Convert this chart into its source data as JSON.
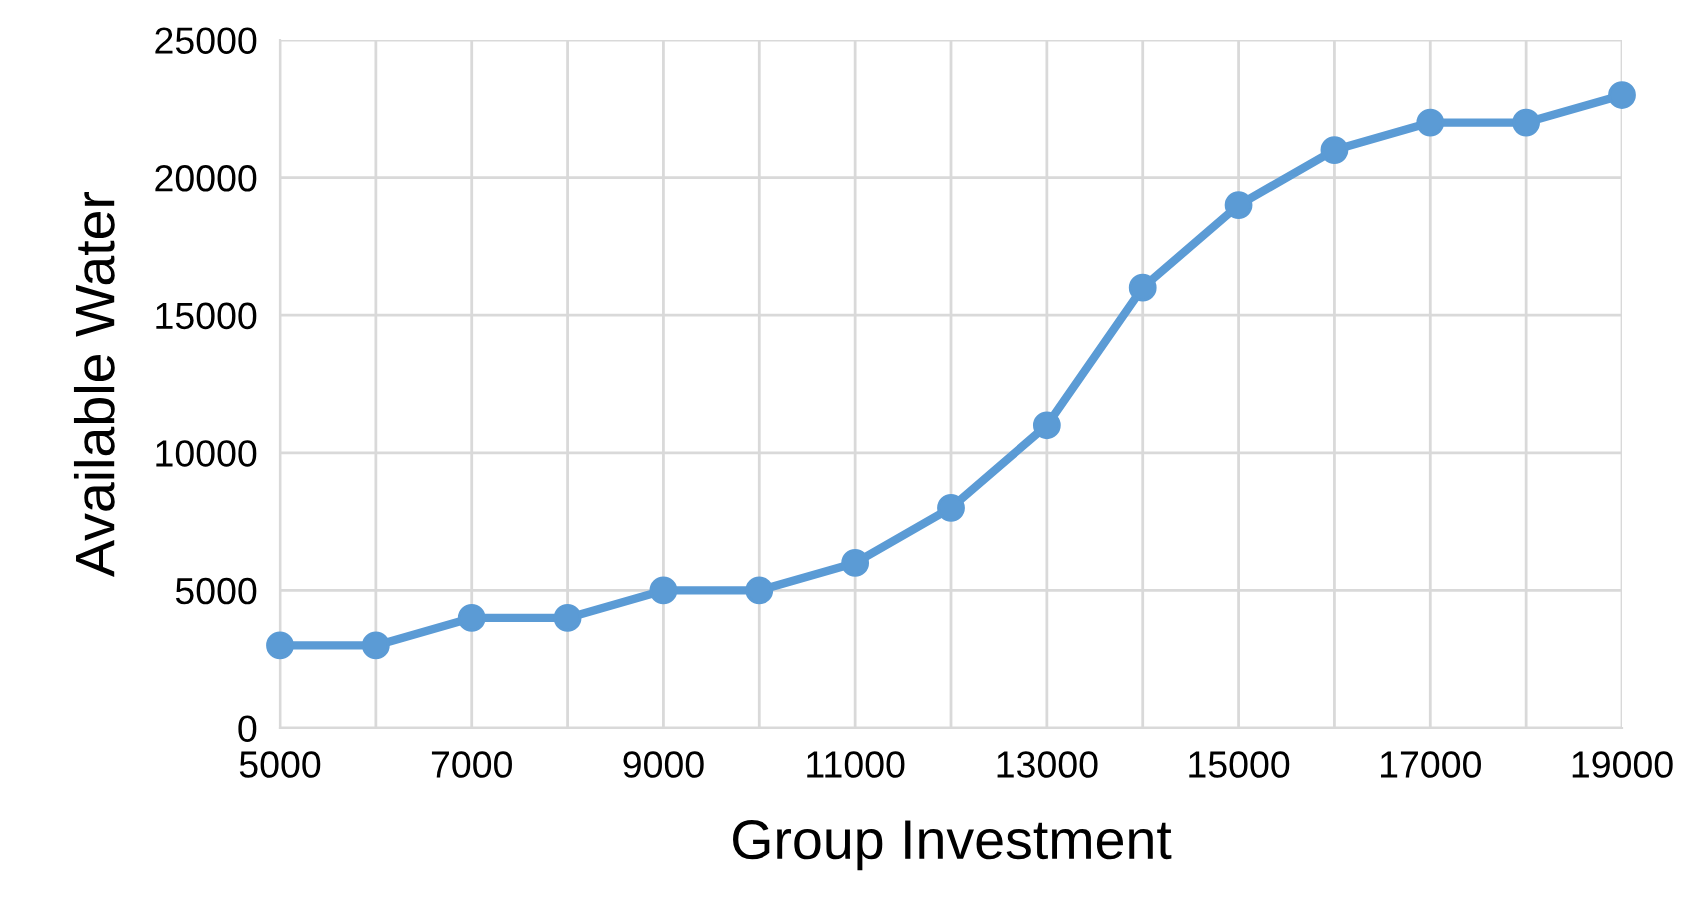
{
  "chart_data": {
    "type": "line",
    "xlabel": "Group Investment",
    "ylabel": "Available Water",
    "x": [
      5000,
      6000,
      7000,
      8000,
      9000,
      10000,
      11000,
      12000,
      13000,
      14000,
      15000,
      16000,
      17000,
      18000,
      19000
    ],
    "series": [
      {
        "color": "#5b9bd5",
        "values": [
          3000,
          3000,
          4000,
          4000,
          5000,
          5000,
          6000,
          8000,
          11000,
          16000,
          19000,
          21000,
          22000,
          22000,
          23000
        ]
      }
    ],
    "xlim": [
      5000,
      19000
    ],
    "xticks": [
      5000,
      {
        "value": 6000,
        "label": null
      },
      7000,
      {
        "value": 8000,
        "label": null
      },
      9000,
      {
        "value": 10000,
        "label": null
      },
      11000,
      {
        "value": 12000,
        "label": null
      },
      13000,
      {
        "value": 14000,
        "label": null
      },
      15000,
      {
        "value": 16000,
        "label": null
      },
      17000,
      {
        "value": 18000,
        "label": null
      },
      19000
    ],
    "ylim": [
      0,
      25000
    ],
    "yticks": [
      0,
      5000,
      10000,
      15000,
      20000,
      25000
    ],
    "grid": true,
    "marker": "circle",
    "line_style": "solid"
  }
}
